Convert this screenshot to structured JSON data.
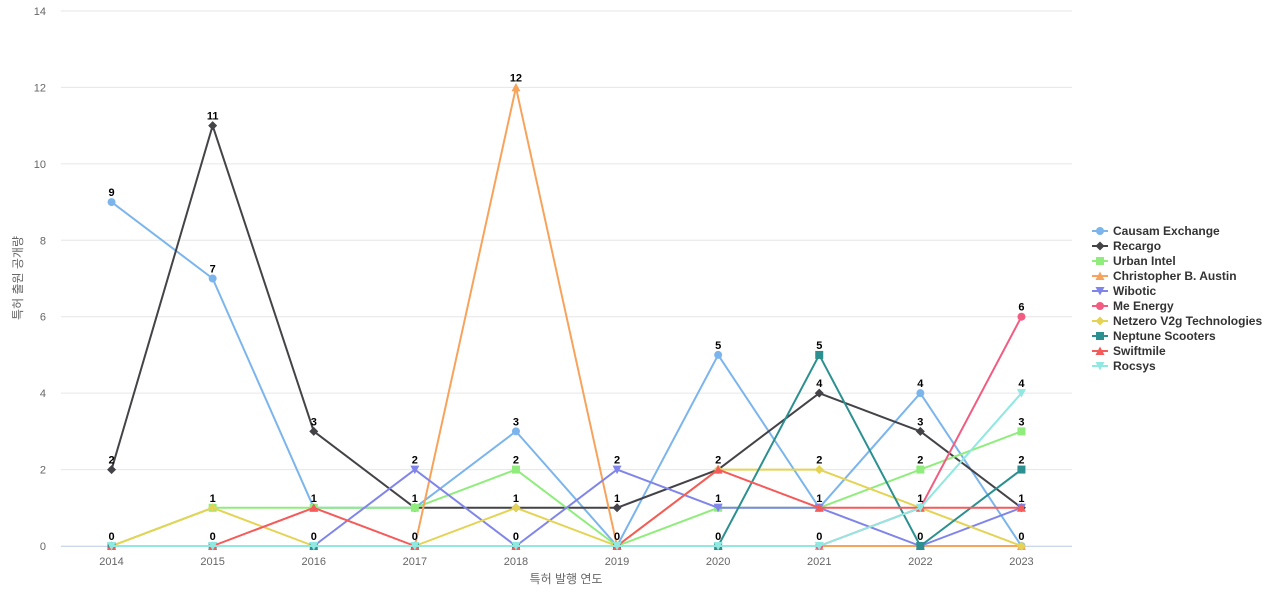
{
  "chart_data": {
    "type": "line",
    "title": "",
    "xlabel": "특허 발행 연도",
    "ylabel": "특허 출원 공개량",
    "ylim": [
      0,
      14
    ],
    "yticks": [
      0,
      2,
      4,
      6,
      8,
      10,
      12,
      14
    ],
    "grid": true,
    "legend_position": "right",
    "categories": [
      "2014",
      "2015",
      "2016",
      "2017",
      "2018",
      "2019",
      "2020",
      "2021",
      "2022",
      "2023"
    ],
    "series": [
      {
        "name": "Causam Exchange",
        "color": "#7cb5ec",
        "marker": "circle",
        "values": [
          9,
          7,
          1,
          1,
          3,
          0,
          5,
          1,
          4,
          0
        ]
      },
      {
        "name": "Recargo",
        "color": "#434348",
        "marker": "diamond",
        "values": [
          2,
          11,
          3,
          1,
          1,
          1,
          2,
          4,
          3,
          1
        ]
      },
      {
        "name": "Urban Intel",
        "color": "#90ed7d",
        "marker": "square",
        "values": [
          0,
          1,
          1,
          1,
          2,
          0,
          1,
          1,
          2,
          3
        ]
      },
      {
        "name": "Christopher B. Austin",
        "color": "#f7a35c",
        "marker": "triangle",
        "values": [
          0,
          0,
          0,
          0,
          12,
          0,
          0,
          0,
          0,
          0
        ]
      },
      {
        "name": "Wibotic",
        "color": "#8085e9",
        "marker": "triangle-down",
        "values": [
          0,
          0,
          0,
          2,
          0,
          2,
          1,
          1,
          0,
          1
        ]
      },
      {
        "name": "Me Energy",
        "color": "#f15c80",
        "marker": "circle",
        "values": [
          0,
          0,
          0,
          0,
          0,
          0,
          0,
          0,
          1,
          6
        ]
      },
      {
        "name": "Netzero V2g Technologies",
        "color": "#e4d354",
        "marker": "diamond",
        "values": [
          0,
          1,
          0,
          0,
          1,
          0,
          2,
          2,
          1,
          0
        ]
      },
      {
        "name": "Neptune Scooters",
        "color": "#2b908f",
        "marker": "square",
        "values": [
          0,
          0,
          0,
          0,
          0,
          0,
          0,
          5,
          0,
          2
        ]
      },
      {
        "name": "Swiftmile",
        "color": "#f45b5b",
        "marker": "triangle",
        "values": [
          0,
          0,
          1,
          0,
          0,
          0,
          2,
          1,
          1,
          1
        ]
      },
      {
        "name": "Rocsys",
        "color": "#91e8e1",
        "marker": "triangle-down",
        "values": [
          0,
          0,
          0,
          0,
          0,
          0,
          0,
          0,
          1,
          4
        ]
      }
    ],
    "data_labels": [
      {
        "category": "2014",
        "values": [
          "9",
          "2",
          "0"
        ]
      },
      {
        "category": "2015",
        "values": [
          "11",
          "7",
          "1",
          "0"
        ]
      },
      {
        "category": "2016",
        "values": [
          "3",
          "1",
          "0"
        ]
      },
      {
        "category": "2017",
        "values": [
          "2",
          "1",
          "0"
        ]
      },
      {
        "category": "2018",
        "values": [
          "12",
          "3",
          "2",
          "1",
          "0"
        ]
      },
      {
        "category": "2019",
        "values": [
          "2",
          "1",
          "0"
        ]
      },
      {
        "category": "2020",
        "values": [
          "5",
          "2",
          "1",
          "0"
        ]
      },
      {
        "category": "2021",
        "values": [
          "5",
          "4",
          "2",
          "1",
          "0"
        ]
      },
      {
        "category": "2022",
        "values": [
          "4",
          "3",
          "2",
          "1",
          "0"
        ]
      },
      {
        "category": "2023",
        "values": [
          "6",
          "4",
          "3",
          "2",
          "1",
          "0"
        ]
      }
    ]
  }
}
